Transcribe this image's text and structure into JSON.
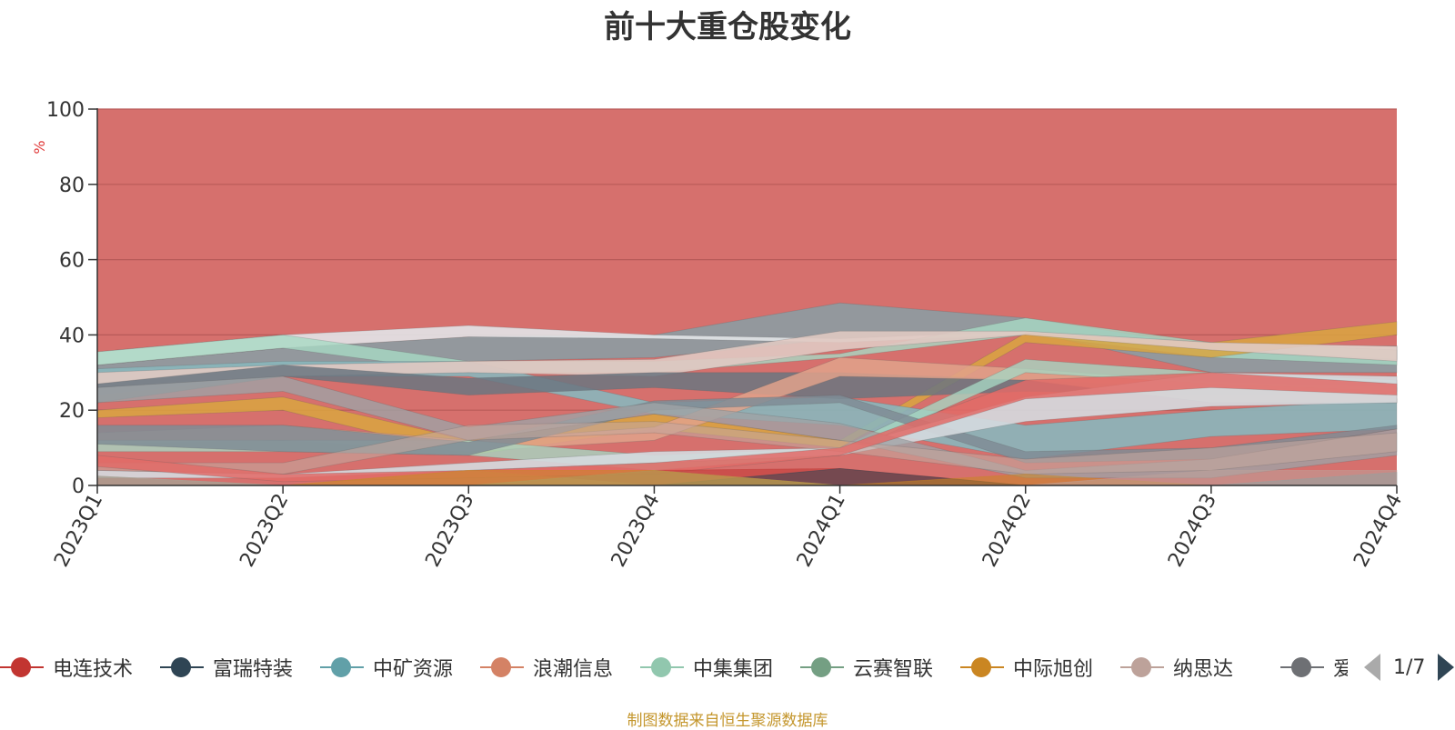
{
  "chart_data": {
    "type": "area",
    "title": "前十大重仓股变化",
    "ylabel": "%",
    "ylim": [
      0,
      100
    ],
    "y_ticks": [
      0,
      20,
      40,
      60,
      80,
      100
    ],
    "categories": [
      "2023Q1",
      "2023Q2",
      "2023Q3",
      "2023Q4",
      "2024Q1",
      "2024Q2",
      "2024Q3",
      "2024Q4"
    ],
    "grid": true,
    "legend_position": "bottom",
    "series": [
      {
        "name": "电连技术",
        "color": "#c23531",
        "values": [
          0,
          0,
          0,
          4.0,
          4.5,
          0,
          0,
          0
        ]
      },
      {
        "name": "富瑞特装",
        "color": "#2f4554",
        "values": [
          0,
          0,
          0,
          0,
          4.5,
          0,
          0,
          0
        ]
      },
      {
        "name": "中矿资源",
        "color": "#61a0a8",
        "values": [
          0,
          0,
          0,
          0,
          0,
          0,
          0,
          3.5
        ]
      },
      {
        "name": "浪潮信息",
        "color": "#d48265",
        "values": [
          0,
          0,
          4.0,
          0,
          0,
          0,
          0,
          0
        ]
      },
      {
        "name": "中集集团",
        "color": "#91c7ae",
        "values": [
          0,
          0,
          0,
          4.0,
          0,
          0,
          0,
          0
        ]
      },
      {
        "name": "云赛智联",
        "color": "#749f83",
        "values": [
          2.5,
          0,
          0,
          0,
          0,
          0,
          0,
          0
        ]
      },
      {
        "name": "中际旭创",
        "color": "#ca8622",
        "values": [
          0,
          0,
          4.0,
          4.0,
          0,
          3.0,
          0,
          0
        ]
      },
      {
        "name": "纳思达",
        "color": "#bda29a",
        "values": [
          2.5,
          0,
          0,
          0,
          0,
          0,
          4.0,
          4.0
        ]
      }
    ]
  },
  "legend": {
    "items": [
      {
        "name": "电连技术",
        "color": "#c23531"
      },
      {
        "name": "富瑞特装",
        "color": "#2f4554"
      },
      {
        "name": "中矿资源",
        "color": "#61a0a8"
      },
      {
        "name": "浪潮信息",
        "color": "#d48265"
      },
      {
        "name": "中集集团",
        "color": "#91c7ae"
      },
      {
        "name": "云赛智联",
        "color": "#749f83"
      },
      {
        "name": "中际旭创",
        "color": "#ca8622"
      },
      {
        "name": "纳思达",
        "color": "#bda29a"
      },
      {
        "name": "爱玛科技",
        "color": "#6e7074"
      }
    ],
    "pager_text": "1/7"
  },
  "source_note": "制图数据来自恒生聚源数据库"
}
